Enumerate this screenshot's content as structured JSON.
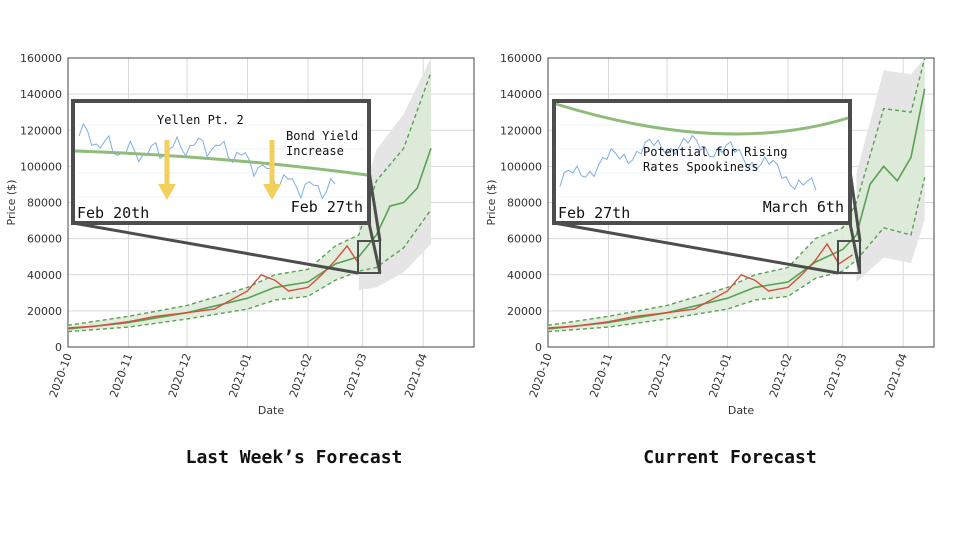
{
  "chart_data": [
    {
      "type": "line",
      "caption": "Last Week’s Forecast",
      "xlabel": "Date",
      "ylabel": "Price ($)",
      "x_ticks": [
        "2020-10",
        "2020-11",
        "2020-12",
        "2021-01",
        "2021-02",
        "2021-03",
        "2021-04"
      ],
      "y_ticks": [
        "0",
        "20000",
        "40000",
        "60000",
        "80000",
        "100000",
        "120000",
        "140000",
        "160000"
      ],
      "ylim": [
        0,
        160000
      ],
      "grid": true,
      "actual_price": {
        "x": [
          "2020-10-01",
          "2020-10-15",
          "2020-11-01",
          "2020-11-15",
          "2020-12-01",
          "2020-12-15",
          "2021-01-01",
          "2021-01-08",
          "2021-01-15",
          "2021-01-22",
          "2021-02-01",
          "2021-02-08",
          "2021-02-15",
          "2021-02-21",
          "2021-02-27"
        ],
        "y": [
          10500,
          11500,
          14000,
          17000,
          19000,
          21000,
          31000,
          40000,
          37000,
          31000,
          33000,
          40000,
          48000,
          56000,
          46000
        ]
      },
      "forecast_mean": {
        "x": [
          "2020-10-01",
          "2020-11-01",
          "2020-12-01",
          "2021-01-01",
          "2021-01-15",
          "2021-02-01",
          "2021-02-15",
          "2021-02-27",
          "2021-03-08",
          "2021-03-15",
          "2021-03-22",
          "2021-03-29",
          "2021-04-05"
        ],
        "y": [
          10000,
          13500,
          19000,
          27000,
          33000,
          36000,
          46000,
          50000,
          62000,
          78000,
          80000,
          88000,
          110000
        ]
      },
      "forecast_upper": {
        "x": [
          "2020-10-01",
          "2020-11-01",
          "2020-12-01",
          "2021-01-01",
          "2021-01-15",
          "2021-02-01",
          "2021-02-15",
          "2021-02-27",
          "2021-03-08",
          "2021-03-22",
          "2021-04-05"
        ],
        "y": [
          12000,
          17000,
          23000,
          33000,
          40000,
          43000,
          56000,
          62000,
          92000,
          110000,
          152000
        ]
      },
      "forecast_lower": {
        "x": [
          "2020-10-01",
          "2020-11-01",
          "2020-12-01",
          "2021-01-01",
          "2021-01-15",
          "2021-02-01",
          "2021-02-15",
          "2021-02-27",
          "2021-03-08",
          "2021-03-22",
          "2021-04-05"
        ],
        "y": [
          8500,
          11000,
          15500,
          21000,
          26000,
          28000,
          37000,
          42000,
          44000,
          55000,
          76000
        ]
      },
      "inset": {
        "start_label": "Feb 20th",
        "end_label": "Feb 27th",
        "annotations": [
          "Yellen Pt. 2",
          "Bond Yield\nIncrease"
        ]
      }
    },
    {
      "type": "line",
      "caption": "Current Forecast",
      "xlabel": "Date",
      "ylabel": "Price ($)",
      "x_ticks": [
        "2020-10",
        "2020-11",
        "2020-12",
        "2021-01",
        "2021-02",
        "2021-03",
        "2021-04"
      ],
      "y_ticks": [
        "0",
        "20000",
        "40000",
        "60000",
        "80000",
        "100000",
        "120000",
        "140000",
        "160000"
      ],
      "ylim": [
        0,
        160000
      ],
      "grid": true,
      "actual_price": {
        "x": [
          "2020-10-01",
          "2020-10-15",
          "2020-11-01",
          "2020-11-15",
          "2020-12-01",
          "2020-12-15",
          "2021-01-01",
          "2021-01-08",
          "2021-01-15",
          "2021-01-22",
          "2021-02-01",
          "2021-02-08",
          "2021-02-15",
          "2021-02-21",
          "2021-02-27",
          "2021-03-06"
        ],
        "y": [
          10500,
          11500,
          14000,
          17000,
          19000,
          21000,
          31000,
          40000,
          37000,
          31000,
          33000,
          40000,
          48000,
          57000,
          46000,
          51000
        ]
      },
      "forecast_mean": {
        "x": [
          "2020-10-01",
          "2020-11-01",
          "2020-12-01",
          "2021-01-01",
          "2021-01-15",
          "2021-02-01",
          "2021-02-15",
          "2021-03-01",
          "2021-03-08",
          "2021-03-15",
          "2021-03-22",
          "2021-03-29",
          "2021-04-05",
          "2021-04-12"
        ],
        "y": [
          10000,
          13500,
          19000,
          27000,
          33000,
          36000,
          47000,
          54000,
          62000,
          90000,
          100000,
          92000,
          105000,
          143000
        ]
      },
      "forecast_upper": {
        "x": [
          "2020-10-01",
          "2020-11-01",
          "2020-12-01",
          "2021-01-01",
          "2021-01-15",
          "2021-02-01",
          "2021-02-15",
          "2021-03-01",
          "2021-03-08",
          "2021-03-22",
          "2021-04-05",
          "2021-04-12"
        ],
        "y": [
          12000,
          17000,
          23000,
          33000,
          40000,
          44000,
          60000,
          66000,
          80000,
          132000,
          130000,
          160000
        ]
      },
      "forecast_lower": {
        "x": [
          "2020-10-01",
          "2020-11-01",
          "2020-12-01",
          "2021-01-01",
          "2021-01-15",
          "2021-02-01",
          "2021-02-15",
          "2021-03-01",
          "2021-03-08",
          "2021-03-22",
          "2021-04-05",
          "2021-04-12"
        ],
        "y": [
          8500,
          11000,
          15500,
          21000,
          26000,
          28000,
          38000,
          42000,
          48000,
          66000,
          62000,
          94000
        ]
      },
      "inset": {
        "start_label": "Feb 27th",
        "end_label": "March 6th",
        "annotations": [
          "Potential for Rising\nRates Spookiness"
        ]
      }
    }
  ],
  "colors": {
    "actual": "#d64c3c",
    "forecast": "#5aa152",
    "band": "#dcebd8",
    "uncertainty_cloud": "#e5e5e5",
    "inset_border": "#4d4d4d",
    "inset_line": "#8fbc7a",
    "inset_price": "#7eaee8",
    "arrow": "#f3cf5b"
  }
}
